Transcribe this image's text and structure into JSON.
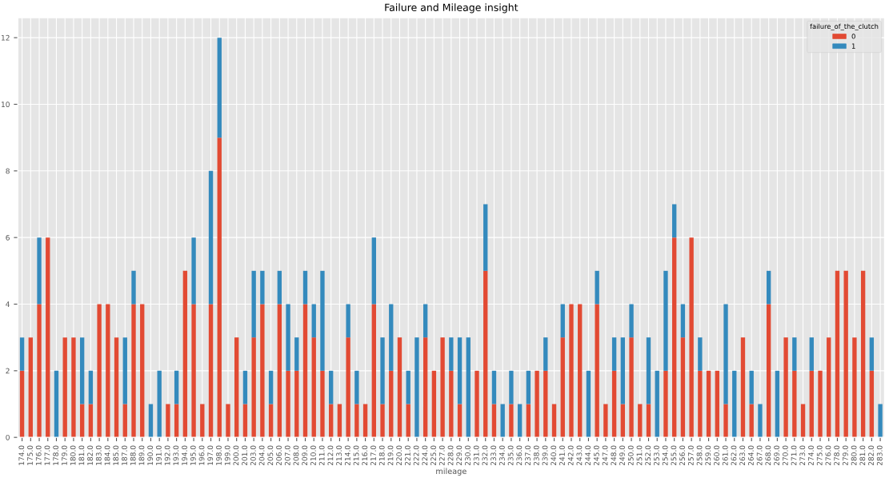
{
  "chart_data": {
    "type": "bar",
    "stacked": true,
    "title": "Failure and Mileage insight",
    "xlabel": "mileage",
    "legend_title": "failure_of_the_clutch",
    "legend": "top right",
    "grid": true,
    "categories": [
      "174.0",
      "175.0",
      "176.0",
      "177.0",
      "178.0",
      "179.0",
      "180.0",
      "181.0",
      "182.0",
      "183.0",
      "184.0",
      "185.0",
      "187.0",
      "188.0",
      "189.0",
      "190.0",
      "191.0",
      "192.0",
      "193.0",
      "194.0",
      "195.0",
      "196.0",
      "197.0",
      "198.0",
      "199.0",
      "200.0",
      "201.0",
      "203.0",
      "204.0",
      "205.0",
      "206.0",
      "207.0",
      "208.0",
      "209.0",
      "210.0",
      "211.0",
      "212.0",
      "213.0",
      "214.0",
      "215.0",
      "216.0",
      "217.0",
      "218.0",
      "219.0",
      "220.0",
      "221.0",
      "222.0",
      "224.0",
      "225.0",
      "227.0",
      "228.0",
      "229.0",
      "230.0",
      "231.0",
      "232.0",
      "233.0",
      "234.0",
      "235.0",
      "236.0",
      "237.0",
      "238.0",
      "239.0",
      "240.0",
      "241.0",
      "242.0",
      "243.0",
      "244.0",
      "245.0",
      "247.0",
      "248.0",
      "249.0",
      "250.0",
      "251.0",
      "252.0",
      "253.0",
      "254.0",
      "255.0",
      "256.0",
      "257.0",
      "258.0",
      "259.0",
      "260.0",
      "261.0",
      "262.0",
      "263.0",
      "264.0",
      "267.0",
      "268.0",
      "269.0",
      "270.0",
      "271.0",
      "273.0",
      "274.0",
      "275.0",
      "276.0",
      "278.0",
      "279.0",
      "280.0",
      "281.0",
      "282.0",
      "283.0"
    ],
    "series": [
      {
        "name": "0",
        "color": "#e24a33",
        "values": [
          2,
          3,
          4,
          6,
          0,
          3,
          3,
          1,
          1,
          4,
          4,
          3,
          1,
          4,
          4,
          0,
          0,
          1,
          1,
          5,
          4,
          1,
          4,
          9,
          1,
          3,
          1,
          3,
          4,
          1,
          4,
          2,
          2,
          4,
          3,
          2,
          1,
          1,
          3,
          1,
          1,
          4,
          1,
          2,
          3,
          1,
          0,
          3,
          2,
          3,
          2,
          1,
          0,
          2,
          5,
          1,
          0,
          1,
          0,
          1,
          2,
          2,
          1,
          3,
          4,
          4,
          0,
          4,
          1,
          2,
          1,
          3,
          1,
          1,
          0,
          2,
          6,
          3,
          6,
          2,
          2,
          2,
          1,
          0,
          3,
          1,
          0,
          4,
          0,
          3,
          2,
          1,
          2,
          2,
          3,
          5,
          5,
          3,
          5,
          2,
          0
        ]
      },
      {
        "name": "1",
        "color": "#348abd",
        "values": [
          1,
          0,
          2,
          0,
          2,
          0,
          0,
          2,
          1,
          0,
          0,
          0,
          2,
          1,
          0,
          1,
          2,
          0,
          1,
          0,
          2,
          0,
          4,
          3,
          0,
          0,
          1,
          2,
          1,
          1,
          1,
          2,
          1,
          1,
          1,
          3,
          1,
          0,
          1,
          1,
          0,
          2,
          2,
          2,
          0,
          1,
          3,
          1,
          0,
          0,
          1,
          2,
          3,
          0,
          2,
          1,
          1,
          1,
          1,
          1,
          0,
          1,
          0,
          1,
          0,
          0,
          2,
          1,
          0,
          1,
          2,
          1,
          0,
          2,
          2,
          3,
          1,
          1,
          0,
          1,
          0,
          0,
          3,
          2,
          0,
          1,
          1,
          1,
          2,
          0,
          1,
          0,
          1,
          0,
          0,
          0,
          0,
          0,
          0,
          1,
          1
        ]
      }
    ],
    "ylim": [
      0,
      12.6
    ],
    "yticks": [
      0,
      2,
      4,
      6,
      8,
      10,
      12
    ]
  }
}
